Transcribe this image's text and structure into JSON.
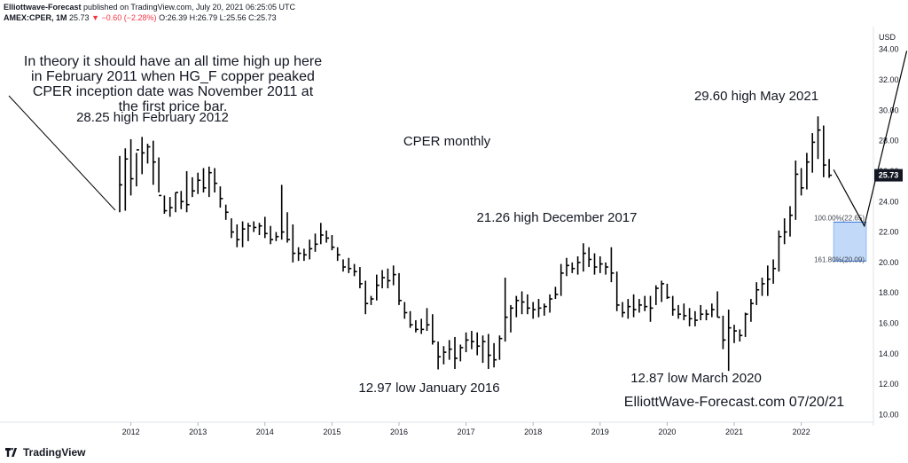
{
  "header": {
    "publisher": "Elliottwave-Forecast",
    "published_text": "published on TradingView.com, July 20, 2021 06:25:05 UTC",
    "symbol": "AMEX:CPER, 1M",
    "last": "25.73",
    "change": "−0.60 (−2.28%)",
    "ohlc": "O:26.39 H:26.79 L:25.56 C:25.73"
  },
  "footer": {
    "brand": "TradingView"
  },
  "colors": {
    "bar": "#000000",
    "box_fill": "#a8caf5",
    "box_edge": "#4a86e8",
    "price_tag": "#131722"
  },
  "annotations": {
    "theory": [
      "In theory it should have an all time high up here",
      "in February 2011 when HG_F copper peaked",
      "CPER inception date was November 2011 at",
      "the first price bar."
    ],
    "high_2012": "28.25 high February 2012",
    "title": "CPER monthly",
    "high_2017": "21.26 high December 2017",
    "high_2021": "29.60 high May 2021",
    "low_2016": "12.97 low January 2016",
    "low_2020": "12.87 low March 2020",
    "watermark": "ElliottWave-Forecast.com 07/20/21",
    "fib_100": "100.00%(22.65)",
    "fib_161": "161.80%(20.09)"
  },
  "chart_data": {
    "type": "ohlc",
    "currency": "USD",
    "y_ticks": [
      "34.00",
      "32.00",
      "30.00",
      "28.00",
      "26.00",
      "24.00",
      "22.00",
      "20.00",
      "18.00",
      "16.00",
      "14.00",
      "12.00",
      "10.00"
    ],
    "x_ticks": [
      "2012",
      "2013",
      "2014",
      "2015",
      "2016",
      "2017",
      "2018",
      "2019",
      "2020",
      "2021",
      "2022"
    ],
    "ylim": [
      9.5,
      35.5
    ],
    "last_price": 25.73,
    "fib_box": {
      "top": 22.65,
      "bottom": 20.09
    },
    "bars": [
      [
        27.0,
        23.3,
        25.1
      ],
      [
        27.5,
        23.4,
        26.8
      ],
      [
        28.1,
        24.4,
        25.5
      ],
      [
        27.2,
        25.0,
        27.4
      ],
      [
        28.25,
        25.8,
        27.2
      ],
      [
        27.8,
        26.5,
        27.6
      ],
      [
        28.0,
        25.1,
        26.6
      ],
      [
        26.9,
        24.6,
        24.4
      ],
      [
        24.4,
        23.2,
        23.4
      ],
      [
        24.3,
        23.0,
        23.6
      ],
      [
        24.6,
        23.3,
        24.6
      ],
      [
        24.7,
        23.5,
        24.0
      ],
      [
        26.0,
        23.3,
        23.8
      ],
      [
        25.6,
        24.3,
        24.7
      ],
      [
        25.9,
        24.5,
        25.4
      ],
      [
        26.2,
        24.6,
        24.9
      ],
      [
        26.3,
        24.3,
        25.9
      ],
      [
        26.2,
        24.6,
        25.2
      ],
      [
        25.0,
        23.6,
        24.2
      ],
      [
        23.8,
        22.8,
        23.3
      ],
      [
        22.9,
        21.6,
        22.0
      ],
      [
        22.5,
        21.0,
        21.5
      ],
      [
        22.7,
        21.0,
        22.2
      ],
      [
        22.6,
        21.4,
        22.4
      ],
      [
        22.7,
        22.0,
        22.3
      ],
      [
        22.6,
        21.8,
        22.4
      ],
      [
        23.0,
        21.6,
        21.9
      ],
      [
        22.4,
        21.2,
        21.5
      ],
      [
        22.0,
        21.4,
        21.7
      ],
      [
        25.1,
        21.5,
        22.0
      ],
      [
        23.3,
        21.3,
        21.5
      ],
      [
        22.5,
        20.0,
        20.6
      ],
      [
        21.0,
        20.1,
        20.6
      ],
      [
        20.9,
        20.1,
        20.5
      ],
      [
        21.5,
        20.2,
        20.9
      ],
      [
        21.9,
        20.7,
        21.2
      ],
      [
        22.6,
        21.2,
        21.8
      ],
      [
        22.1,
        21.3,
        21.6
      ],
      [
        21.8,
        20.8,
        21.0
      ],
      [
        21.0,
        20.1,
        20.5
      ],
      [
        20.2,
        19.4,
        19.7
      ],
      [
        20.3,
        19.3,
        19.6
      ],
      [
        19.9,
        19.1,
        19.4
      ],
      [
        19.7,
        18.3,
        18.6
      ],
      [
        18.8,
        16.6,
        17.3
      ],
      [
        17.8,
        17.2,
        17.6
      ],
      [
        19.2,
        17.5,
        18.5
      ],
      [
        19.5,
        18.3,
        19.0
      ],
      [
        19.6,
        18.3,
        18.8
      ],
      [
        19.8,
        18.5,
        19.2
      ],
      [
        19.3,
        17.2,
        17.5
      ],
      [
        17.4,
        16.3,
        16.7
      ],
      [
        16.8,
        15.7,
        15.9
      ],
      [
        16.2,
        15.4,
        15.6
      ],
      [
        16.3,
        15.3,
        15.6
      ],
      [
        17.0,
        15.5,
        15.9
      ],
      [
        16.6,
        14.6,
        14.8
      ],
      [
        14.8,
        12.97,
        13.8
      ],
      [
        14.5,
        13.3,
        14.1
      ],
      [
        14.9,
        13.6,
        14.3
      ],
      [
        15.1,
        13.0,
        13.7
      ],
      [
        14.6,
        13.5,
        14.4
      ],
      [
        15.4,
        14.1,
        14.9
      ],
      [
        15.5,
        14.3,
        14.8
      ],
      [
        15.4,
        13.9,
        14.5
      ],
      [
        15.2,
        13.4,
        14.8
      ],
      [
        15.3,
        13.0,
        13.9
      ],
      [
        14.7,
        13.1,
        13.6
      ],
      [
        15.2,
        13.6,
        15.0
      ],
      [
        19.0,
        14.8,
        16.4
      ],
      [
        17.2,
        15.4,
        17.0
      ],
      [
        17.8,
        16.4,
        17.5
      ],
      [
        18.1,
        16.6,
        17.4
      ],
      [
        17.9,
        16.6,
        17.0
      ],
      [
        17.4,
        16.3,
        16.9
      ],
      [
        17.6,
        16.4,
        17.0
      ],
      [
        17.3,
        16.5,
        17.1
      ],
      [
        17.9,
        16.7,
        17.6
      ],
      [
        18.4,
        17.6,
        17.9
      ],
      [
        19.9,
        17.8,
        19.3
      ],
      [
        20.3,
        19.1,
        19.8
      ],
      [
        20.0,
        19.3,
        19.6
      ],
      [
        20.4,
        19.2,
        20.0
      ],
      [
        21.26,
        19.4,
        20.6
      ],
      [
        21.0,
        19.7,
        20.2
      ],
      [
        20.6,
        19.2,
        19.7
      ],
      [
        20.4,
        19.3,
        19.9
      ],
      [
        20.0,
        19.2,
        19.7
      ],
      [
        21.0,
        18.7,
        19.3
      ],
      [
        19.4,
        16.8,
        17.2
      ],
      [
        17.4,
        16.4,
        16.7
      ],
      [
        17.6,
        16.3,
        17.1
      ],
      [
        17.9,
        16.4,
        16.9
      ],
      [
        17.6,
        16.7,
        17.2
      ],
      [
        17.8,
        16.8,
        17.1
      ],
      [
        17.8,
        16.1,
        17.0
      ],
      [
        18.5,
        17.2,
        18.3
      ],
      [
        18.8,
        17.4,
        18.6
      ],
      [
        18.6,
        17.6,
        17.7
      ],
      [
        17.8,
        16.5,
        16.9
      ],
      [
        17.2,
        16.3,
        16.6
      ],
      [
        17.3,
        16.2,
        16.5
      ],
      [
        17.0,
        15.8,
        16.3
      ],
      [
        16.8,
        15.8,
        16.2
      ],
      [
        17.2,
        16.2,
        16.6
      ],
      [
        16.9,
        16.2,
        16.6
      ],
      [
        17.3,
        16.4,
        16.9
      ],
      [
        18.1,
        16.4,
        16.4
      ],
      [
        16.5,
        14.3,
        14.9
      ],
      [
        16.9,
        12.87,
        15.7
      ],
      [
        15.9,
        14.7,
        15.5
      ],
      [
        15.6,
        14.8,
        15.2
      ],
      [
        16.7,
        15.1,
        16.6
      ],
      [
        17.6,
        16.1,
        17.3
      ],
      [
        18.7,
        17.2,
        18.2
      ],
      [
        19.0,
        17.8,
        18.6
      ],
      [
        19.8,
        17.8,
        18.9
      ],
      [
        20.2,
        18.6,
        19.6
      ],
      [
        22.1,
        19.4,
        21.7
      ],
      [
        22.9,
        21.2,
        22.0
      ],
      [
        23.7,
        21.7,
        23.1
      ],
      [
        26.7,
        22.8,
        25.8
      ],
      [
        26.2,
        24.4,
        24.9
      ],
      [
        27.2,
        24.8,
        26.6
      ],
      [
        28.5,
        25.9,
        27.9
      ],
      [
        29.6,
        26.8,
        28.7
      ],
      [
        29.0,
        25.6,
        26.4
      ],
      [
        26.8,
        25.56,
        25.73
      ]
    ],
    "projection_path": [
      [
        0,
        26.1
      ],
      [
        2.1,
        22.4
      ],
      [
        5.0,
        33.9
      ]
    ]
  }
}
